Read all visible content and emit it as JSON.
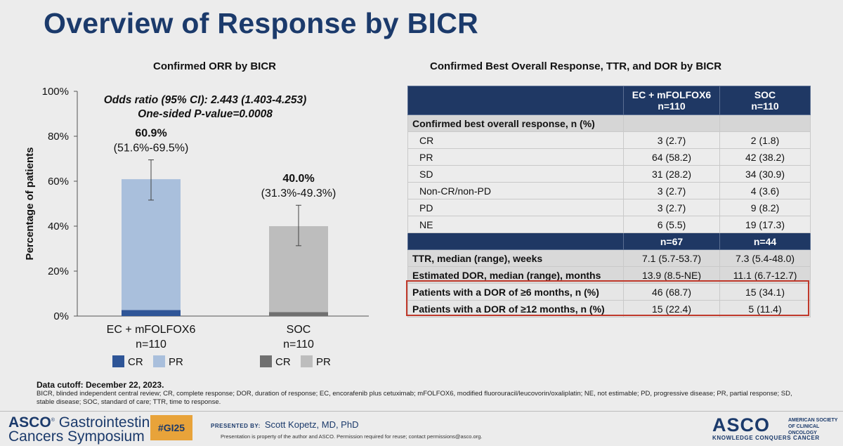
{
  "title": "Overview of Response by BICR",
  "left_section_title": "Confirmed ORR by BICR",
  "right_section_title": "Confirmed Best Overall Response, TTR, and DOR by BICR",
  "chart_data": {
    "type": "bar",
    "stacked": true,
    "title": "Confirmed ORR by BICR",
    "ylabel": "Percentage of patients",
    "xlabel": "",
    "ylim": [
      0,
      100
    ],
    "yticks": [
      "0%",
      "20%",
      "40%",
      "60%",
      "80%",
      "100%"
    ],
    "annotation_lines": [
      "Odds ratio (95% CI): 2.443 (1.403-4.253)",
      "One-sided P-value=0.0008"
    ],
    "groups": [
      {
        "label": "EC + mFOLFOX6",
        "n_label": "n=110",
        "value_label": "60.9%",
        "ci_label": "(51.6%-69.5%)",
        "total": 60.9,
        "ci": [
          51.6,
          69.5
        ],
        "series": [
          {
            "name": "CR",
            "value": 2.7,
            "color": "#2e5597"
          },
          {
            "name": "PR",
            "value": 58.2,
            "color": "#a9bfdc"
          }
        ]
      },
      {
        "label": "SOC",
        "n_label": "n=110",
        "value_label": "40.0%",
        "ci_label": "(31.3%-49.3%)",
        "total": 40.0,
        "ci": [
          31.3,
          49.3
        ],
        "series": [
          {
            "name": "CR",
            "value": 1.8,
            "color": "#707070"
          },
          {
            "name": "PR",
            "value": 38.2,
            "color": "#bdbdbd"
          }
        ]
      }
    ]
  },
  "table": {
    "header": {
      "col0": "",
      "col1_line1": "EC + mFOLFOX6",
      "col1_line2": "n=110",
      "col2_line1": "SOC",
      "col2_line2": "n=110"
    },
    "section_label": "Confirmed best overall response, n (%)",
    "rows": [
      {
        "label": "CR",
        "a": "3 (2.7)",
        "b": "2 (1.8)"
      },
      {
        "label": "PR",
        "a": "64 (58.2)",
        "b": "42 (38.2)"
      },
      {
        "label": "SD",
        "a": "31 (28.2)",
        "b": "34 (30.9)"
      },
      {
        "label": "Non-CR/non-PD",
        "a": "3 (2.7)",
        "b": "4 (3.6)"
      },
      {
        "label": "PD",
        "a": "3 (2.7)",
        "b": "9 (8.2)"
      },
      {
        "label": "NE",
        "a": "6 (5.5)",
        "b": "19 (17.3)"
      }
    ],
    "subheader": {
      "a": "n=67",
      "b": "n=44"
    },
    "bold_rows": [
      {
        "label": "TTR, median (range), weeks",
        "a": "7.1 (5.7-53.7)",
        "b": "7.3 (5.4-48.0)"
      },
      {
        "label": "Estimated DOR, median (range), months",
        "a": "13.9 (8.5-NE)",
        "b": "11.1 (6.7-12.7)"
      },
      {
        "label": "Patients with a DOR of ≥6 months, n (%)",
        "a": "46 (68.7)",
        "b": "15 (34.1)"
      },
      {
        "label": "Patients with a DOR of ≥12 months, n (%)",
        "a": "15 (22.4)",
        "b": "5 (11.4)"
      }
    ]
  },
  "footnote_title": "Data cutoff: December 22, 2023.",
  "footnote": "BICR, blinded independent central review; CR, complete response; DOR, duration of response; EC, encorafenib plus cetuximab; mFOLFOX6, modified fluorouracil/leucovorin/oxaliplatin; NE, not estimable; PD, progressive disease; PR, partial response; SD, stable disease; SOC, standard of care; TTR, time to response.",
  "footer": {
    "asco_left_line1": "ASCO",
    "asco_left_line1b": "Gastrointestinal",
    "asco_left_line2": "Cancers Symposium",
    "hashtag": "#GI25",
    "presented_label": "PRESENTED BY:",
    "presenter": "Scott Kopetz, MD, PhD",
    "property": "Presentation is property of the author and ASCO. Permission required for reuse; contact permissions@asco.org.",
    "asco_right": "ASCO",
    "asco_right_small": "AMERICAN SOCIETY OF CLINICAL ONCOLOGY",
    "asco_right_tag": "KNOWLEDGE CONQUERS CANCER"
  }
}
